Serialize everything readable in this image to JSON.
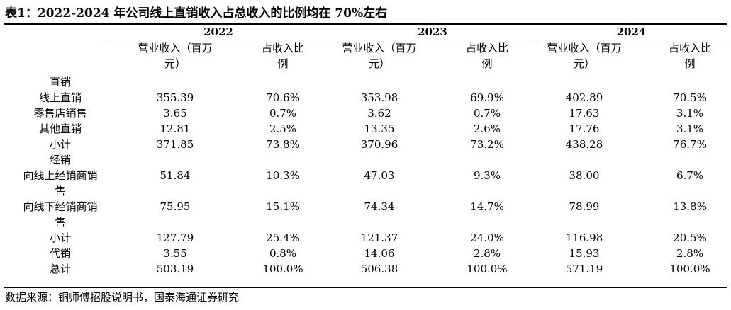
{
  "title": "表1：2022-2024 年公司线上直销收入占总收入的比例均在 70%左右",
  "years": [
    "2022",
    "2023",
    "2024"
  ],
  "col_headers": {
    "revenue": [
      "营业收入（百万",
      "元）"
    ],
    "share": [
      "占收入比",
      "例"
    ]
  },
  "rows": [
    {
      "label": [
        "直销"
      ],
      "values": [
        "",
        "",
        "",
        "",
        "",
        ""
      ]
    },
    {
      "label": [
        "线上直销"
      ],
      "values": [
        "355.39",
        "70.6%",
        "353.98",
        "69.9%",
        "402.89",
        "70.5%"
      ]
    },
    {
      "label": [
        "零售店销售"
      ],
      "values": [
        "3.65",
        "0.7%",
        "3.62",
        "0.7%",
        "17.63",
        "3.1%"
      ]
    },
    {
      "label": [
        "其他直销"
      ],
      "values": [
        "12.81",
        "2.5%",
        "13.35",
        "2.6%",
        "17.76",
        "3.1%"
      ]
    },
    {
      "label": [
        "小计"
      ],
      "values": [
        "371.85",
        "73.8%",
        "370.96",
        "73.2%",
        "438.28",
        "76.7%"
      ]
    },
    {
      "label": [
        "经销"
      ],
      "values": [
        "",
        "",
        "",
        "",
        "",
        ""
      ]
    },
    {
      "label": [
        "向线上经销商销",
        "售"
      ],
      "values": [
        "51.84",
        "10.3%",
        "47.03",
        "9.3%",
        "38.00",
        "6.7%"
      ]
    },
    {
      "label": [
        "向线下经销商销",
        "售"
      ],
      "values": [
        "75.95",
        "15.1%",
        "74.34",
        "14.7%",
        "78.99",
        "13.8%"
      ]
    },
    {
      "label": [
        "小计"
      ],
      "values": [
        "127.79",
        "25.4%",
        "121.37",
        "24.0%",
        "116.98",
        "20.5%"
      ]
    },
    {
      "label": [
        "代销"
      ],
      "values": [
        "3.55",
        "0.8%",
        "14.06",
        "2.8%",
        "15.93",
        "2.8%"
      ]
    },
    {
      "label": [
        "总计"
      ],
      "values": [
        "503.19",
        "100.0%",
        "506.38",
        "100.0%",
        "571.19",
        "100.0%"
      ]
    }
  ],
  "source": "数据来源：铜师傅招股说明书，国泰海通证券研究"
}
